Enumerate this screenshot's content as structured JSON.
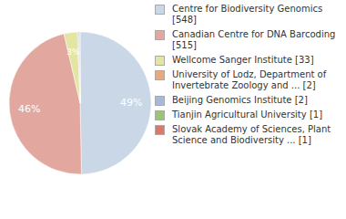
{
  "chart_data": {
    "type": "pie",
    "categories": [
      "Centre for Biodiversity Genomics [548]",
      "Canadian Centre for DNA Barcoding [515]",
      "Wellcome Sanger Institute [33]",
      "University of Lodz, Department of Invertebrate Zoology and ... [2]",
      "Beijing Genomics Institute [2]",
      "Tianjin Agricultural University [1]",
      "Slovak Academy of Sciences, Plant Science and Biodiversity ... [1]"
    ],
    "values": [
      49,
      46,
      3,
      0.2,
      0.2,
      0.1,
      0.1
    ],
    "value_labels": [
      "49%",
      "46%",
      "3%",
      null,
      null,
      null,
      null
    ],
    "colors": [
      "#c9d7e6",
      "#e2a89f",
      "#e3e6a3",
      "#eaa97c",
      "#a6b9d8",
      "#9cc37a",
      "#d9796a"
    ],
    "data_labels": true,
    "legend": "right"
  }
}
